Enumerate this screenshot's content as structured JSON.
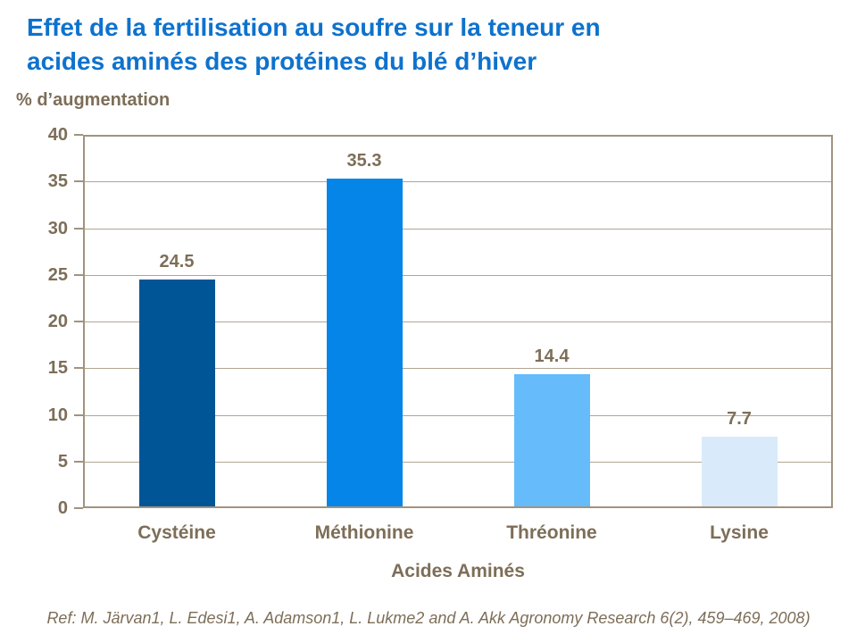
{
  "title_lines": [
    "Effet de la fertilisation au soufre sur la teneur en",
    "acides aminés des protéines du blé d’hiver"
  ],
  "y_axis_title": "% d’augmentation",
  "reference": "Ref: M. Järvan1, L. Edesi1, A. Adamson1, L. Lukme2 and A. Akk Agronomy Research 6(2), 459–469, 2008)",
  "colors": {
    "title": "#0e72cd",
    "axis_text": "#7d6e58",
    "plot_border": "#a0947e",
    "gridline": "#b0a593",
    "bars": [
      "#005596",
      "#0585e8",
      "#66bbfa",
      "#d9eafa"
    ]
  },
  "chart_data": {
    "type": "bar",
    "title": "Effet de la fertilisation au soufre sur la teneur en acides aminés des protéines du blé d’hiver",
    "categories": [
      "Cystéine",
      "Méthionine",
      "Thréonine",
      "Lysine"
    ],
    "values": [
      24.5,
      35.3,
      14.4,
      7.7
    ],
    "value_labels": [
      "24.5",
      "35.3",
      "14.4",
      "7.7"
    ],
    "xlabel": "Acides Aminés",
    "ylabel": "% d’augmentation",
    "ylim": [
      0,
      40
    ],
    "yticks": [
      0,
      5,
      10,
      15,
      20,
      25,
      30,
      35,
      40
    ],
    "grid": true,
    "legend_position": "none",
    "bar_colors": [
      "#005596",
      "#0585e8",
      "#66bbfa",
      "#d9eafa"
    ]
  }
}
